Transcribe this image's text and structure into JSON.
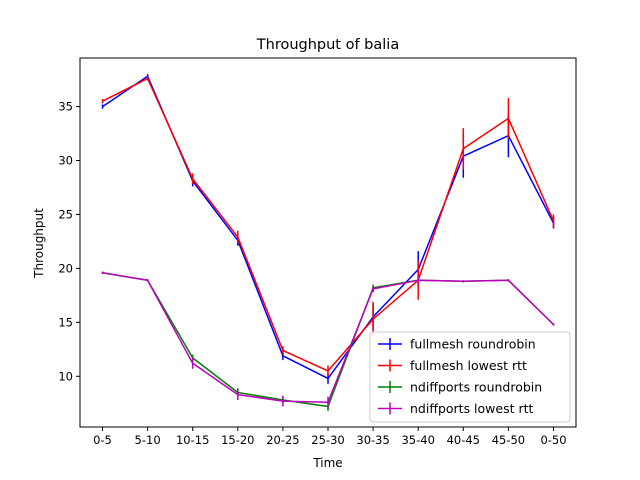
{
  "chart_data": {
    "type": "line",
    "title": "Throughput of balia",
    "xlabel": "Time",
    "ylabel": "Throughput",
    "categories": [
      "0-5",
      "5-10",
      "10-15",
      "15-20",
      "20-25",
      "25-30",
      "30-35",
      "35-40",
      "40-45",
      "45-50",
      "0-50"
    ],
    "ylim": [
      5.3,
      39.5
    ],
    "yticks": [
      10,
      15,
      20,
      25,
      30,
      35
    ],
    "grid": false,
    "legend": "lower-right",
    "series": [
      {
        "name": "fullmesh roundrobin",
        "color": "#0000ff",
        "values": [
          35.0,
          37.8,
          28.1,
          22.6,
          11.9,
          9.8,
          15.5,
          19.9,
          30.4,
          32.3,
          24.2
        ],
        "errors": [
          0.2,
          0.2,
          0.5,
          0.5,
          0.4,
          0.5,
          1.2,
          1.7,
          2.0,
          2.0,
          0.5
        ]
      },
      {
        "name": "fullmesh lowest rtt",
        "color": "#ff0000",
        "values": [
          35.5,
          37.6,
          28.3,
          22.9,
          12.4,
          10.5,
          15.3,
          18.9,
          31.1,
          33.9,
          24.4
        ],
        "errors": [
          0.2,
          0.2,
          0.5,
          0.6,
          0.4,
          0.5,
          1.6,
          1.8,
          1.9,
          1.9,
          0.6
        ]
      },
      {
        "name": "ndiffports roundrobin",
        "color": "#008000",
        "values": [
          19.6,
          18.9,
          11.7,
          8.5,
          7.8,
          7.2,
          18.2,
          18.9,
          18.8,
          18.9,
          14.8
        ],
        "errors": [
          0.1,
          0.1,
          0.3,
          0.4,
          0.3,
          0.4,
          0.3,
          0.3,
          0.1,
          0.1,
          0.1
        ]
      },
      {
        "name": "ndiffports lowest rtt",
        "color": "#bf00bf",
        "values": [
          19.6,
          18.9,
          11.2,
          8.3,
          7.7,
          7.6,
          18.1,
          18.9,
          18.8,
          18.9,
          14.8
        ],
        "errors": [
          0.1,
          0.1,
          0.5,
          0.5,
          0.5,
          0.5,
          0.3,
          0.4,
          0.1,
          0.1,
          0.1
        ]
      }
    ]
  }
}
